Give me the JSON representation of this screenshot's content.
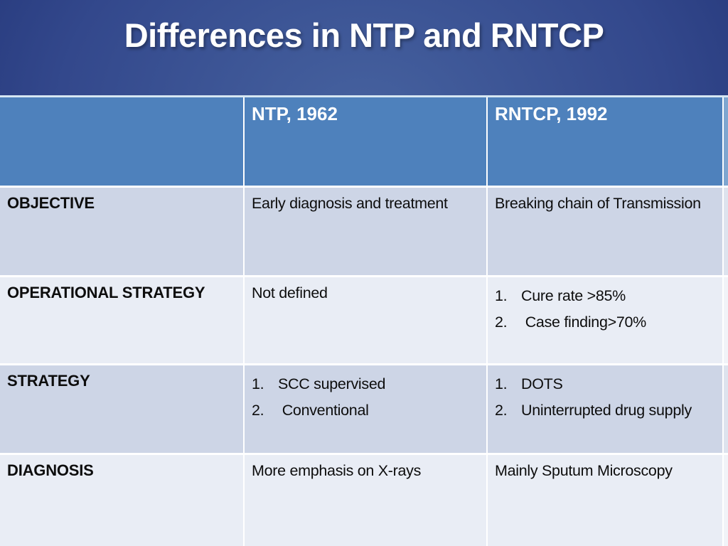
{
  "slide": {
    "title": "Differences in NTP and RNTCP"
  },
  "table": {
    "header": {
      "col0": "",
      "col1": "NTP, 1962",
      "col2": "RNTCP, 1992"
    },
    "rows": [
      {
        "label": "OBJECTIVE",
        "ntp": {
          "text": "Early diagnosis and treatment"
        },
        "rntcp": {
          "text": "Breaking chain of Transmission"
        }
      },
      {
        "label": "OPERATIONAL STRATEGY",
        "ntp": {
          "text": "Not defined"
        },
        "rntcp": {
          "items": [
            {
              "num": "1.",
              "text": "Cure rate >85%"
            },
            {
              "num": "2.",
              "text": " Case finding>70%"
            }
          ]
        }
      },
      {
        "label": "STRATEGY",
        "ntp": {
          "items": [
            {
              "num": "1.",
              "text": "SCC supervised"
            },
            {
              "num": "2.",
              "text": " Conventional"
            }
          ]
        },
        "rntcp": {
          "items": [
            {
              "num": "1.",
              "text": "DOTS"
            },
            {
              "num": "2.",
              "text": "Uninterrupted drug supply"
            }
          ]
        }
      },
      {
        "label": "DIAGNOSIS",
        "ntp": {
          "text": "More emphasis on X-rays"
        },
        "rntcp": {
          "text": "Mainly Sputum Microscopy"
        }
      }
    ]
  },
  "colors": {
    "bg-center": "#46629f",
    "bg-edge": "#1c2d6f",
    "title-text": "#ffffff",
    "header-bg": "#4e81bc",
    "header-text": "#ffffff",
    "row-dark": "#cdd5e6",
    "row-light": "#e9edf5",
    "cell-text": "#0d0d0d",
    "grid-border": "#ffffff",
    "table-top-border": "#d6e7f3",
    "edge-header": "#7ea6d0",
    "edge-row-dark": "#dde3ee",
    "edge-row-light": "#f1f3f8"
  }
}
